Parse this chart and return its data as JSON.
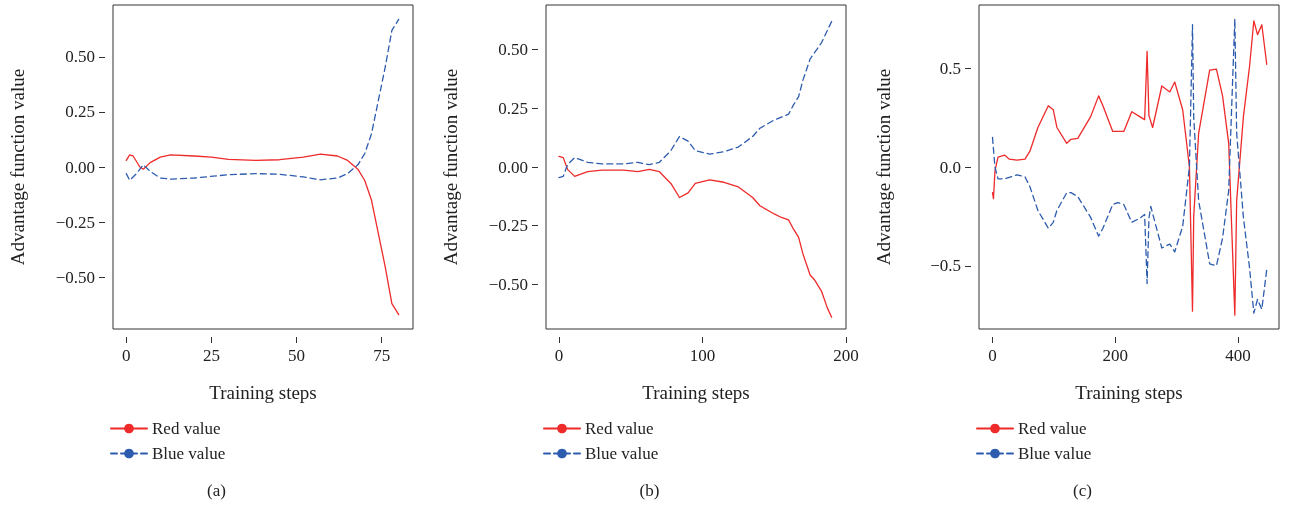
{
  "chart_data": [
    {
      "type": "line",
      "xlabel": "Training steps",
      "ylabel": "Advantage function value",
      "annotations": [
        "(a)"
      ],
      "legend": "bottom",
      "marker": "none",
      "grid": false,
      "xlim": [
        -3.9,
        84.2
      ],
      "xticks": [
        0,
        25,
        50,
        75
      ],
      "ylim": [
        -0.735,
        0.735
      ],
      "yticks": [
        {
          "value": -0.5,
          "label": "−0.50"
        },
        {
          "value": -0.25,
          "label": "−0.25"
        },
        {
          "value": 0,
          "label": "0.00"
        },
        {
          "value": 0.25,
          "label": "0.25"
        },
        {
          "value": 0.5,
          "label": "0.50"
        }
      ],
      "series": [
        {
          "name": "Red value",
          "color": "#ee2a2a",
          "line_style": "solid",
          "x": [
            0,
            1,
            2,
            4,
            5,
            7,
            10,
            13,
            20,
            25,
            30,
            38,
            45,
            52,
            57,
            62,
            65,
            68,
            70,
            72,
            74,
            76,
            78,
            80
          ],
          "values": [
            0.03,
            0.055,
            0.05,
            0.0,
            -0.01,
            0.02,
            0.045,
            0.055,
            0.05,
            0.045,
            0.035,
            0.03,
            0.033,
            0.045,
            0.058,
            0.05,
            0.03,
            -0.01,
            -0.06,
            -0.15,
            -0.3,
            -0.45,
            -0.62,
            -0.67
          ]
        },
        {
          "name": "Blue value",
          "color": "#2d5cae",
          "line_style": "dashed",
          "x": [
            0,
            1,
            3,
            5,
            7,
            10,
            13,
            20,
            30,
            38,
            45,
            52,
            57,
            62,
            65,
            68,
            70,
            72,
            74,
            76,
            78,
            80
          ],
          "values": [
            -0.03,
            -0.06,
            -0.03,
            0.01,
            -0.02,
            -0.05,
            -0.055,
            -0.05,
            -0.035,
            -0.03,
            -0.033,
            -0.045,
            -0.058,
            -0.05,
            -0.03,
            0.01,
            0.06,
            0.15,
            0.3,
            0.45,
            0.62,
            0.67
          ]
        }
      ]
    },
    {
      "type": "line",
      "xlabel": "Training steps",
      "ylabel": "Advantage function value",
      "annotations": [
        "(b)"
      ],
      "legend": "bottom",
      "marker": "none",
      "grid": false,
      "xlim": [
        -9,
        200
      ],
      "xticks": [
        0,
        100,
        200
      ],
      "ylim": [
        -0.69,
        0.69
      ],
      "yticks": [
        {
          "value": -0.5,
          "label": "−0.50"
        },
        {
          "value": -0.25,
          "label": "−0.25"
        },
        {
          "value": 0,
          "label": "0.00"
        },
        {
          "value": 0.25,
          "label": "0.25"
        },
        {
          "value": 0.5,
          "label": "0.50"
        }
      ],
      "series": [
        {
          "name": "Red value",
          "color": "#ee2a2a",
          "line_style": "solid",
          "x": [
            0,
            3,
            6,
            11,
            20,
            30,
            45,
            55,
            63,
            70,
            78,
            84,
            90,
            95,
            105,
            115,
            125,
            135,
            140,
            150,
            155,
            160,
            163,
            167,
            170,
            175,
            178,
            183,
            187,
            190
          ],
          "values": [
            0.045,
            0.04,
            -0.01,
            -0.04,
            -0.02,
            -0.013,
            -0.013,
            -0.02,
            -0.01,
            -0.02,
            -0.07,
            -0.13,
            -0.11,
            -0.07,
            -0.055,
            -0.065,
            -0.085,
            -0.13,
            -0.165,
            -0.2,
            -0.215,
            -0.225,
            -0.26,
            -0.3,
            -0.37,
            -0.46,
            -0.48,
            -0.53,
            -0.6,
            -0.64
          ]
        },
        {
          "name": "Blue value",
          "color": "#2d5cae",
          "line_style": "dashed",
          "x": [
            0,
            3,
            6,
            11,
            20,
            30,
            45,
            55,
            63,
            70,
            78,
            84,
            90,
            95,
            105,
            115,
            125,
            135,
            140,
            150,
            160,
            163,
            167,
            170,
            175,
            183,
            190
          ],
          "values": [
            -0.045,
            -0.04,
            0.01,
            0.04,
            0.02,
            0.013,
            0.013,
            0.02,
            0.01,
            0.02,
            0.07,
            0.13,
            0.11,
            0.07,
            0.055,
            0.065,
            0.085,
            0.13,
            0.165,
            0.2,
            0.225,
            0.26,
            0.3,
            0.37,
            0.46,
            0.53,
            0.62
          ]
        }
      ]
    },
    {
      "type": "line",
      "xlabel": "Training steps",
      "ylabel": "Advantage function value",
      "annotations": [
        "(c)"
      ],
      "legend": "bottom",
      "marker": "none",
      "grid": false,
      "xlim": [
        -22,
        467
      ],
      "xticks": [
        0,
        200,
        400
      ],
      "ylim": [
        -0.82,
        0.82
      ],
      "yticks": [
        {
          "value": -0.5,
          "label": "−0.5"
        },
        {
          "value": 0,
          "label": "0.0"
        },
        {
          "value": 0.5,
          "label": "0.5"
        }
      ],
      "series": [
        {
          "name": "Red value",
          "color": "#ee2a2a",
          "line_style": "solid",
          "x": [
            0,
            1.6,
            4,
            9,
            20,
            27,
            40,
            53,
            61,
            74,
            91,
            99,
            105,
            121,
            128,
            139,
            160,
            173,
            180,
            196,
            204,
            214,
            227,
            240,
            248,
            252,
            255,
            261,
            276,
            289,
            297,
            310,
            321,
            326,
            328,
            336,
            354,
            365,
            375,
            385,
            395,
            398,
            409,
            419,
            426,
            432,
            439,
            447
          ],
          "values": [
            -0.13,
            -0.16,
            -0.02,
            0.05,
            0.06,
            0.04,
            0.035,
            0.04,
            0.08,
            0.2,
            0.31,
            0.29,
            0.2,
            0.12,
            0.14,
            0.145,
            0.255,
            0.36,
            0.31,
            0.18,
            0.18,
            0.18,
            0.28,
            0.255,
            0.24,
            0.585,
            0.26,
            0.2,
            0.41,
            0.38,
            0.43,
            0.29,
            0.0,
            -0.73,
            -0.25,
            0.17,
            0.49,
            0.495,
            0.36,
            0.12,
            -0.75,
            -0.17,
            0.255,
            0.51,
            0.74,
            0.67,
            0.72,
            0.52
          ]
        },
        {
          "name": "Blue value",
          "color": "#2d5cae",
          "line_style": "dashed",
          "x": [
            0,
            4,
            9,
            20,
            40,
            53,
            61,
            74,
            91,
            99,
            105,
            121,
            128,
            139,
            160,
            173,
            180,
            196,
            204,
            214,
            227,
            240,
            248,
            252,
            255,
            258,
            276,
            289,
            297,
            310,
            321,
            326,
            328,
            336,
            354,
            365,
            375,
            385,
            395,
            398,
            409,
            419,
            426,
            432,
            439,
            447
          ],
          "values": [
            0.15,
            0.0,
            -0.06,
            -0.06,
            -0.04,
            -0.05,
            -0.1,
            -0.22,
            -0.31,
            -0.28,
            -0.22,
            -0.13,
            -0.13,
            -0.15,
            -0.255,
            -0.35,
            -0.31,
            -0.19,
            -0.18,
            -0.19,
            -0.28,
            -0.26,
            -0.24,
            -0.59,
            -0.26,
            -0.2,
            -0.41,
            -0.39,
            -0.43,
            -0.3,
            0.0,
            0.72,
            0.25,
            -0.17,
            -0.49,
            -0.5,
            -0.36,
            -0.12,
            0.75,
            0.17,
            -0.255,
            -0.51,
            -0.74,
            -0.67,
            -0.72,
            -0.52
          ]
        }
      ]
    }
  ]
}
